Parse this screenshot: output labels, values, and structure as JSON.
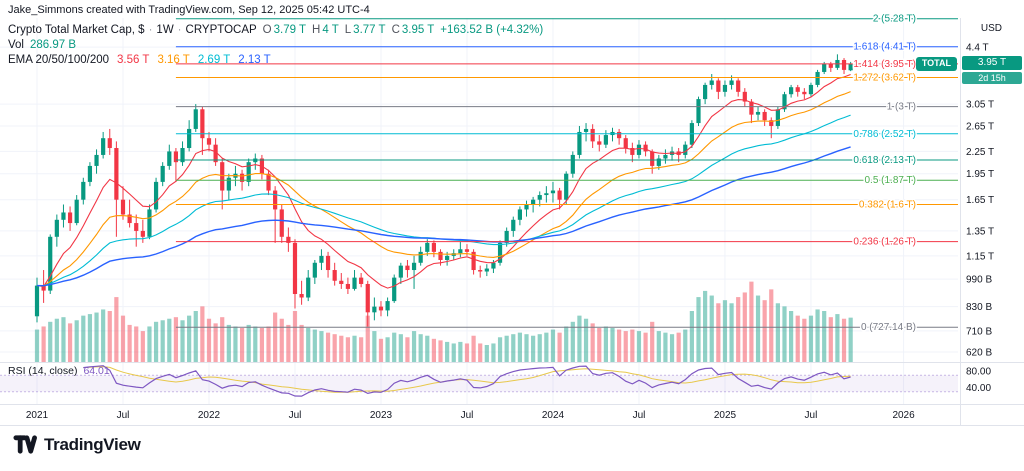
{
  "attribution": "Jake_Simmons created with TradingView.com, Sep 12, 2025 05:42 UTC-4",
  "legend": {
    "symbol_title": "Crypto Total Market Cap, $",
    "sep": "·",
    "interval": "1W",
    "exchange": "CRYPTOCAP",
    "ohlc": {
      "o_label": "O",
      "o": "3.79 T",
      "h_label": "H",
      "h": "4 T",
      "l_label": "L",
      "l": "3.77 T",
      "c_label": "C",
      "c": "3.95 T",
      "change": "+163.52 B (+4.32%)"
    },
    "volume": {
      "label": "Vol",
      "value": "286.97 B"
    },
    "ema": {
      "label": "EMA 20/50/100/200",
      "values": [
        "3.56 T",
        "3.16 T",
        "2.69 T",
        "2.13 T"
      ]
    }
  },
  "rsi_legend": {
    "label": "RSI (14, close)",
    "value": "64.01"
  },
  "price_axis": {
    "currency": "USD",
    "badge": {
      "symbol": "TOTAL",
      "price": "3.95 T",
      "countdown": "2d 15h"
    }
  },
  "footer": {
    "brand": "TradingView"
  },
  "colors": {
    "up": "#089981",
    "down": "#F23645",
    "vol_up": "rgba(8,153,129,0.45)",
    "vol_down": "rgba(242,54,69,0.45)",
    "ema": [
      "#F23645",
      "#FF9800",
      "#00BCD4",
      "#2962FF"
    ],
    "rsi": "#7E57C2",
    "rsi_ma": "#E8C84B",
    "rsi_band": "rgba(126,87,194,0.08)",
    "rsi_band_line": "rgba(126,87,194,0.4)",
    "grid": "#F0F3FA",
    "border": "#E0E3EB",
    "accent": "#089981",
    "text": "#131722"
  },
  "chart_data": {
    "type": "candlestick",
    "title": "Crypto Total Market Cap, $ - 1W - CRYPTOCAP",
    "y_scale": "log",
    "y_unit": "USD (T = trillions, B = billions)",
    "x_start": "2021-01",
    "x_end": "2025-09",
    "points_interval": "2 weeks",
    "ohlcv_columns": [
      "open_T",
      "high_T",
      "low_T",
      "close_T",
      "volume_B"
    ],
    "ohlcv": [
      [
        0.78,
        1.0,
        0.75,
        0.95,
        210
      ],
      [
        0.95,
        1.05,
        0.85,
        0.92,
        230
      ],
      [
        0.92,
        1.32,
        0.9,
        1.3,
        260
      ],
      [
        1.3,
        1.5,
        1.22,
        1.45,
        280
      ],
      [
        1.45,
        1.6,
        1.38,
        1.52,
        290
      ],
      [
        1.52,
        1.58,
        1.35,
        1.42,
        250
      ],
      [
        1.42,
        1.7,
        1.4,
        1.65,
        270
      ],
      [
        1.65,
        1.9,
        1.6,
        1.85,
        300
      ],
      [
        1.85,
        2.1,
        1.8,
        2.05,
        310
      ],
      [
        2.05,
        2.28,
        1.95,
        2.2,
        320
      ],
      [
        2.2,
        2.55,
        2.15,
        2.45,
        340
      ],
      [
        2.45,
        2.6,
        2.2,
        2.3,
        330
      ],
      [
        2.3,
        2.4,
        1.3,
        1.65,
        420
      ],
      [
        1.65,
        1.8,
        1.45,
        1.5,
        300
      ],
      [
        1.5,
        1.65,
        1.38,
        1.42,
        240
      ],
      [
        1.42,
        1.5,
        1.22,
        1.35,
        230
      ],
      [
        1.35,
        1.45,
        1.25,
        1.3,
        200
      ],
      [
        1.3,
        1.6,
        1.28,
        1.55,
        230
      ],
      [
        1.55,
        1.9,
        1.52,
        1.85,
        260
      ],
      [
        1.85,
        2.1,
        1.8,
        2.05,
        270
      ],
      [
        2.05,
        2.35,
        2.0,
        2.25,
        280
      ],
      [
        2.25,
        2.3,
        1.85,
        2.1,
        290
      ],
      [
        2.1,
        2.4,
        2.05,
        2.3,
        270
      ],
      [
        2.3,
        2.75,
        2.25,
        2.6,
        300
      ],
      [
        2.6,
        3.05,
        2.55,
        2.95,
        330
      ],
      [
        2.95,
        3.0,
        2.2,
        2.45,
        360
      ],
      [
        2.45,
        2.55,
        2.25,
        2.35,
        280
      ],
      [
        2.35,
        2.45,
        2.05,
        2.1,
        250
      ],
      [
        2.1,
        2.15,
        1.55,
        1.75,
        290
      ],
      [
        1.75,
        1.95,
        1.65,
        1.9,
        240
      ],
      [
        1.9,
        2.05,
        1.8,
        1.95,
        230
      ],
      [
        1.95,
        2.0,
        1.75,
        1.85,
        220
      ],
      [
        1.85,
        2.15,
        1.8,
        2.1,
        240
      ],
      [
        2.1,
        2.22,
        2.0,
        2.15,
        230
      ],
      [
        2.15,
        2.2,
        1.88,
        1.95,
        220
      ],
      [
        1.95,
        2.0,
        1.7,
        1.75,
        230
      ],
      [
        1.75,
        1.8,
        1.25,
        1.55,
        320
      ],
      [
        1.55,
        1.6,
        1.25,
        1.3,
        280
      ],
      [
        1.3,
        1.38,
        1.18,
        1.25,
        240
      ],
      [
        1.25,
        1.28,
        0.82,
        0.9,
        330
      ],
      [
        0.9,
        0.98,
        0.84,
        0.88,
        240
      ],
      [
        0.88,
        1.05,
        0.86,
        1.0,
        220
      ],
      [
        1.0,
        1.12,
        0.96,
        1.1,
        210
      ],
      [
        1.1,
        1.2,
        1.05,
        1.15,
        200
      ],
      [
        1.15,
        1.18,
        1.0,
        1.05,
        190
      ],
      [
        1.05,
        1.1,
        0.95,
        0.98,
        180
      ],
      [
        0.98,
        1.03,
        0.93,
        0.96,
        170
      ],
      [
        0.96,
        1.0,
        0.9,
        0.93,
        160
      ],
      [
        0.93,
        1.05,
        0.92,
        1.0,
        170
      ],
      [
        1.0,
        1.03,
        0.94,
        0.96,
        160
      ],
      [
        0.96,
        0.98,
        0.73,
        0.8,
        300
      ],
      [
        0.8,
        0.88,
        0.76,
        0.83,
        200
      ],
      [
        0.83,
        0.86,
        0.78,
        0.81,
        150
      ],
      [
        0.81,
        0.88,
        0.78,
        0.86,
        160
      ],
      [
        0.86,
        1.02,
        0.85,
        1.0,
        190
      ],
      [
        1.0,
        1.1,
        0.96,
        1.08,
        180
      ],
      [
        1.08,
        1.12,
        1.0,
        1.05,
        160
      ],
      [
        1.05,
        1.15,
        0.93,
        1.1,
        200
      ],
      [
        1.1,
        1.22,
        1.08,
        1.18,
        180
      ],
      [
        1.18,
        1.28,
        1.15,
        1.25,
        170
      ],
      [
        1.25,
        1.27,
        1.14,
        1.18,
        150
      ],
      [
        1.18,
        1.2,
        1.08,
        1.12,
        140
      ],
      [
        1.12,
        1.18,
        1.08,
        1.15,
        130
      ],
      [
        1.15,
        1.2,
        1.12,
        1.17,
        120
      ],
      [
        1.17,
        1.26,
        1.14,
        1.2,
        130
      ],
      [
        1.2,
        1.24,
        1.15,
        1.18,
        120
      ],
      [
        1.18,
        1.2,
        1.02,
        1.05,
        170
      ],
      [
        1.05,
        1.08,
        1.0,
        1.04,
        120
      ],
      [
        1.04,
        1.09,
        1.01,
        1.06,
        110
      ],
      [
        1.06,
        1.12,
        1.03,
        1.1,
        120
      ],
      [
        1.1,
        1.27,
        1.08,
        1.25,
        160
      ],
      [
        1.25,
        1.38,
        1.22,
        1.35,
        170
      ],
      [
        1.35,
        1.48,
        1.3,
        1.45,
        180
      ],
      [
        1.45,
        1.58,
        1.4,
        1.55,
        190
      ],
      [
        1.55,
        1.64,
        1.48,
        1.6,
        180
      ],
      [
        1.6,
        1.68,
        1.52,
        1.65,
        170
      ],
      [
        1.65,
        1.74,
        1.58,
        1.7,
        180
      ],
      [
        1.7,
        1.8,
        1.62,
        1.72,
        190
      ],
      [
        1.72,
        1.85,
        1.62,
        1.75,
        210
      ],
      [
        1.75,
        1.78,
        1.55,
        1.65,
        190
      ],
      [
        1.65,
        1.98,
        1.6,
        1.95,
        230
      ],
      [
        1.95,
        2.25,
        1.9,
        2.2,
        260
      ],
      [
        2.2,
        2.65,
        2.15,
        2.55,
        300
      ],
      [
        2.55,
        2.7,
        2.4,
        2.6,
        280
      ],
      [
        2.6,
        2.68,
        2.3,
        2.4,
        250
      ],
      [
        2.4,
        2.5,
        2.25,
        2.35,
        220
      ],
      [
        2.35,
        2.58,
        2.3,
        2.5,
        230
      ],
      [
        2.5,
        2.62,
        2.4,
        2.55,
        220
      ],
      [
        2.55,
        2.6,
        2.35,
        2.45,
        210
      ],
      [
        2.45,
        2.5,
        2.22,
        2.3,
        200
      ],
      [
        2.3,
        2.38,
        2.1,
        2.2,
        210
      ],
      [
        2.2,
        2.42,
        2.15,
        2.35,
        200
      ],
      [
        2.35,
        2.4,
        2.18,
        2.25,
        190
      ],
      [
        2.25,
        2.28,
        1.95,
        2.05,
        260
      ],
      [
        2.05,
        2.2,
        2.0,
        2.15,
        200
      ],
      [
        2.15,
        2.28,
        2.08,
        2.2,
        190
      ],
      [
        2.2,
        2.32,
        2.12,
        2.25,
        180
      ],
      [
        2.25,
        2.3,
        2.1,
        2.2,
        190
      ],
      [
        2.2,
        2.4,
        2.15,
        2.35,
        210
      ],
      [
        2.35,
        2.75,
        2.3,
        2.7,
        330
      ],
      [
        2.7,
        3.2,
        2.65,
        3.15,
        420
      ],
      [
        3.15,
        3.5,
        3.05,
        3.45,
        460
      ],
      [
        3.45,
        3.7,
        3.35,
        3.55,
        430
      ],
      [
        3.55,
        3.6,
        3.15,
        3.3,
        380
      ],
      [
        3.3,
        3.55,
        3.2,
        3.45,
        400
      ],
      [
        3.45,
        3.67,
        3.35,
        3.55,
        380
      ],
      [
        3.55,
        3.6,
        3.2,
        3.3,
        420
      ],
      [
        3.3,
        3.38,
        3.0,
        3.1,
        450
      ],
      [
        3.1,
        3.15,
        2.7,
        2.85,
        520
      ],
      [
        2.85,
        3.0,
        2.75,
        2.9,
        430
      ],
      [
        2.9,
        2.95,
        2.65,
        2.75,
        400
      ],
      [
        2.75,
        2.8,
        2.45,
        2.65,
        470
      ],
      [
        2.65,
        3.0,
        2.6,
        2.95,
        380
      ],
      [
        2.95,
        3.3,
        2.9,
        3.25,
        360
      ],
      [
        3.25,
        3.45,
        3.18,
        3.4,
        330
      ],
      [
        3.4,
        3.45,
        3.2,
        3.3,
        300
      ],
      [
        3.3,
        3.38,
        3.15,
        3.25,
        280
      ],
      [
        3.25,
        3.5,
        3.2,
        3.45,
        300
      ],
      [
        3.45,
        3.8,
        3.4,
        3.75,
        340
      ],
      [
        3.75,
        4.0,
        3.7,
        3.95,
        330
      ],
      [
        3.95,
        4.0,
        3.75,
        3.85,
        290
      ],
      [
        3.85,
        4.2,
        3.8,
        4.05,
        310
      ],
      [
        4.05,
        4.1,
        3.7,
        3.8,
        280
      ],
      [
        3.79,
        4.0,
        3.77,
        3.95,
        287
      ]
    ],
    "emas": {
      "periods": [
        20,
        50,
        100,
        200
      ],
      "current_values_T": [
        3.56,
        3.16,
        2.69,
        2.13
      ]
    },
    "fib_levels": [
      {
        "level": 2,
        "price": 5.28,
        "text": "2 (5.28 T)",
        "color": "#089981"
      },
      {
        "level": 1.618,
        "price": 4.41,
        "text": "1.618 (4.41 T)",
        "color": "#2962FF"
      },
      {
        "level": 1.414,
        "price": 3.95,
        "text": "1.414 (3.95 T)",
        "color": "#F23645"
      },
      {
        "level": 1.272,
        "price": 3.62,
        "text": "1.272 (3.62 T)",
        "color": "#FF9800"
      },
      {
        "level": 1,
        "price": 3.0,
        "text": "1 (3 T)",
        "color": "#787B86"
      },
      {
        "level": 0.786,
        "price": 2.52,
        "text": "0.786 (2.52 T)",
        "color": "#00BCD4"
      },
      {
        "level": 0.618,
        "price": 2.13,
        "text": "0.618 (2.13 T)",
        "color": "#089981"
      },
      {
        "level": 0.5,
        "price": 1.87,
        "text": "0.5 (1.87 T)",
        "color": "#4CAF50"
      },
      {
        "level": 0.382,
        "price": 1.6,
        "text": "0.382 (1.6 T)",
        "color": "#FF9800"
      },
      {
        "level": 0.236,
        "price": 1.26,
        "text": "0.236 (1.26 T)",
        "color": "#F23645"
      },
      {
        "level": 0,
        "price": 0.72714,
        "text": "0 (727.14 B)",
        "color": "#787B86"
      }
    ],
    "fib_start_index": 21,
    "volume_scale_max": 550,
    "rsi": {
      "period": 14,
      "period_points": 7,
      "current": 64.01,
      "bands": [
        70,
        30
      ]
    },
    "axis": {
      "price_ticks": [
        {
          "t": "4.4 T",
          "v": 4.4
        },
        {
          "t": "3.05 T",
          "v": 3.05
        },
        {
          "t": "2.65 T",
          "v": 2.65
        },
        {
          "t": "2.25 T",
          "v": 2.25
        },
        {
          "t": "1.95 T",
          "v": 1.95
        },
        {
          "t": "1.65 T",
          "v": 1.65
        },
        {
          "t": "1.35 T",
          "v": 1.35
        },
        {
          "t": "1.15 T",
          "v": 1.15
        },
        {
          "t": "990 B",
          "v": 0.99
        },
        {
          "t": "830 B",
          "v": 0.83
        },
        {
          "t": "710 B",
          "v": 0.71
        },
        {
          "t": "620 B",
          "v": 0.62
        }
      ],
      "time_ticks": [
        {
          "t": "2021",
          "i": 0
        },
        {
          "t": "Jul",
          "i": 13
        },
        {
          "t": "2022",
          "i": 26
        },
        {
          "t": "Jul",
          "i": 39
        },
        {
          "t": "2023",
          "i": 52
        },
        {
          "t": "Jul",
          "i": 65
        },
        {
          "t": "2024",
          "i": 78
        },
        {
          "t": "Jul",
          "i": 91
        },
        {
          "t": "2025",
          "i": 104
        },
        {
          "t": "Jul",
          "i": 117
        },
        {
          "t": "2026",
          "i": 131
        }
      ],
      "rsi_ticks": [
        {
          "t": "80.00",
          "v": 80
        },
        {
          "t": "40.00",
          "v": 40
        }
      ]
    }
  }
}
